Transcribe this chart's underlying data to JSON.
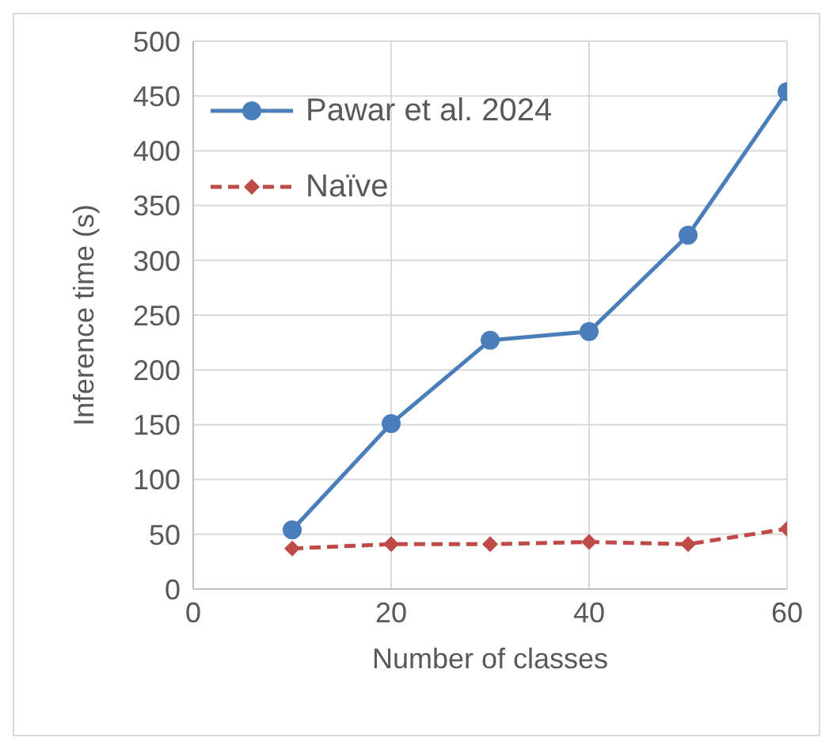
{
  "chart_data": {
    "type": "line",
    "xlabel": "Number of classes",
    "ylabel": "Inference time (s)",
    "x": [
      10,
      20,
      30,
      40,
      50,
      60
    ],
    "series": [
      {
        "name": "Pawar et al. 2024",
        "color": "#4a7ebb",
        "values": [
          54,
          151,
          227,
          235,
          323,
          454
        ],
        "marker": "circle",
        "line_style": "solid"
      },
      {
        "name": "Naïve",
        "color": "#be4b48",
        "values": [
          37,
          41,
          41,
          43,
          41,
          55
        ],
        "marker": "diamond",
        "line_style": "dashed"
      }
    ],
    "xlim": [
      0,
      60
    ],
    "xticks": [
      0,
      20,
      40,
      60
    ],
    "ylim": [
      0,
      500
    ],
    "yticks": [
      0,
      50,
      100,
      150,
      200,
      250,
      300,
      350,
      400,
      450,
      500
    ],
    "grid": true,
    "legend": "top left"
  }
}
